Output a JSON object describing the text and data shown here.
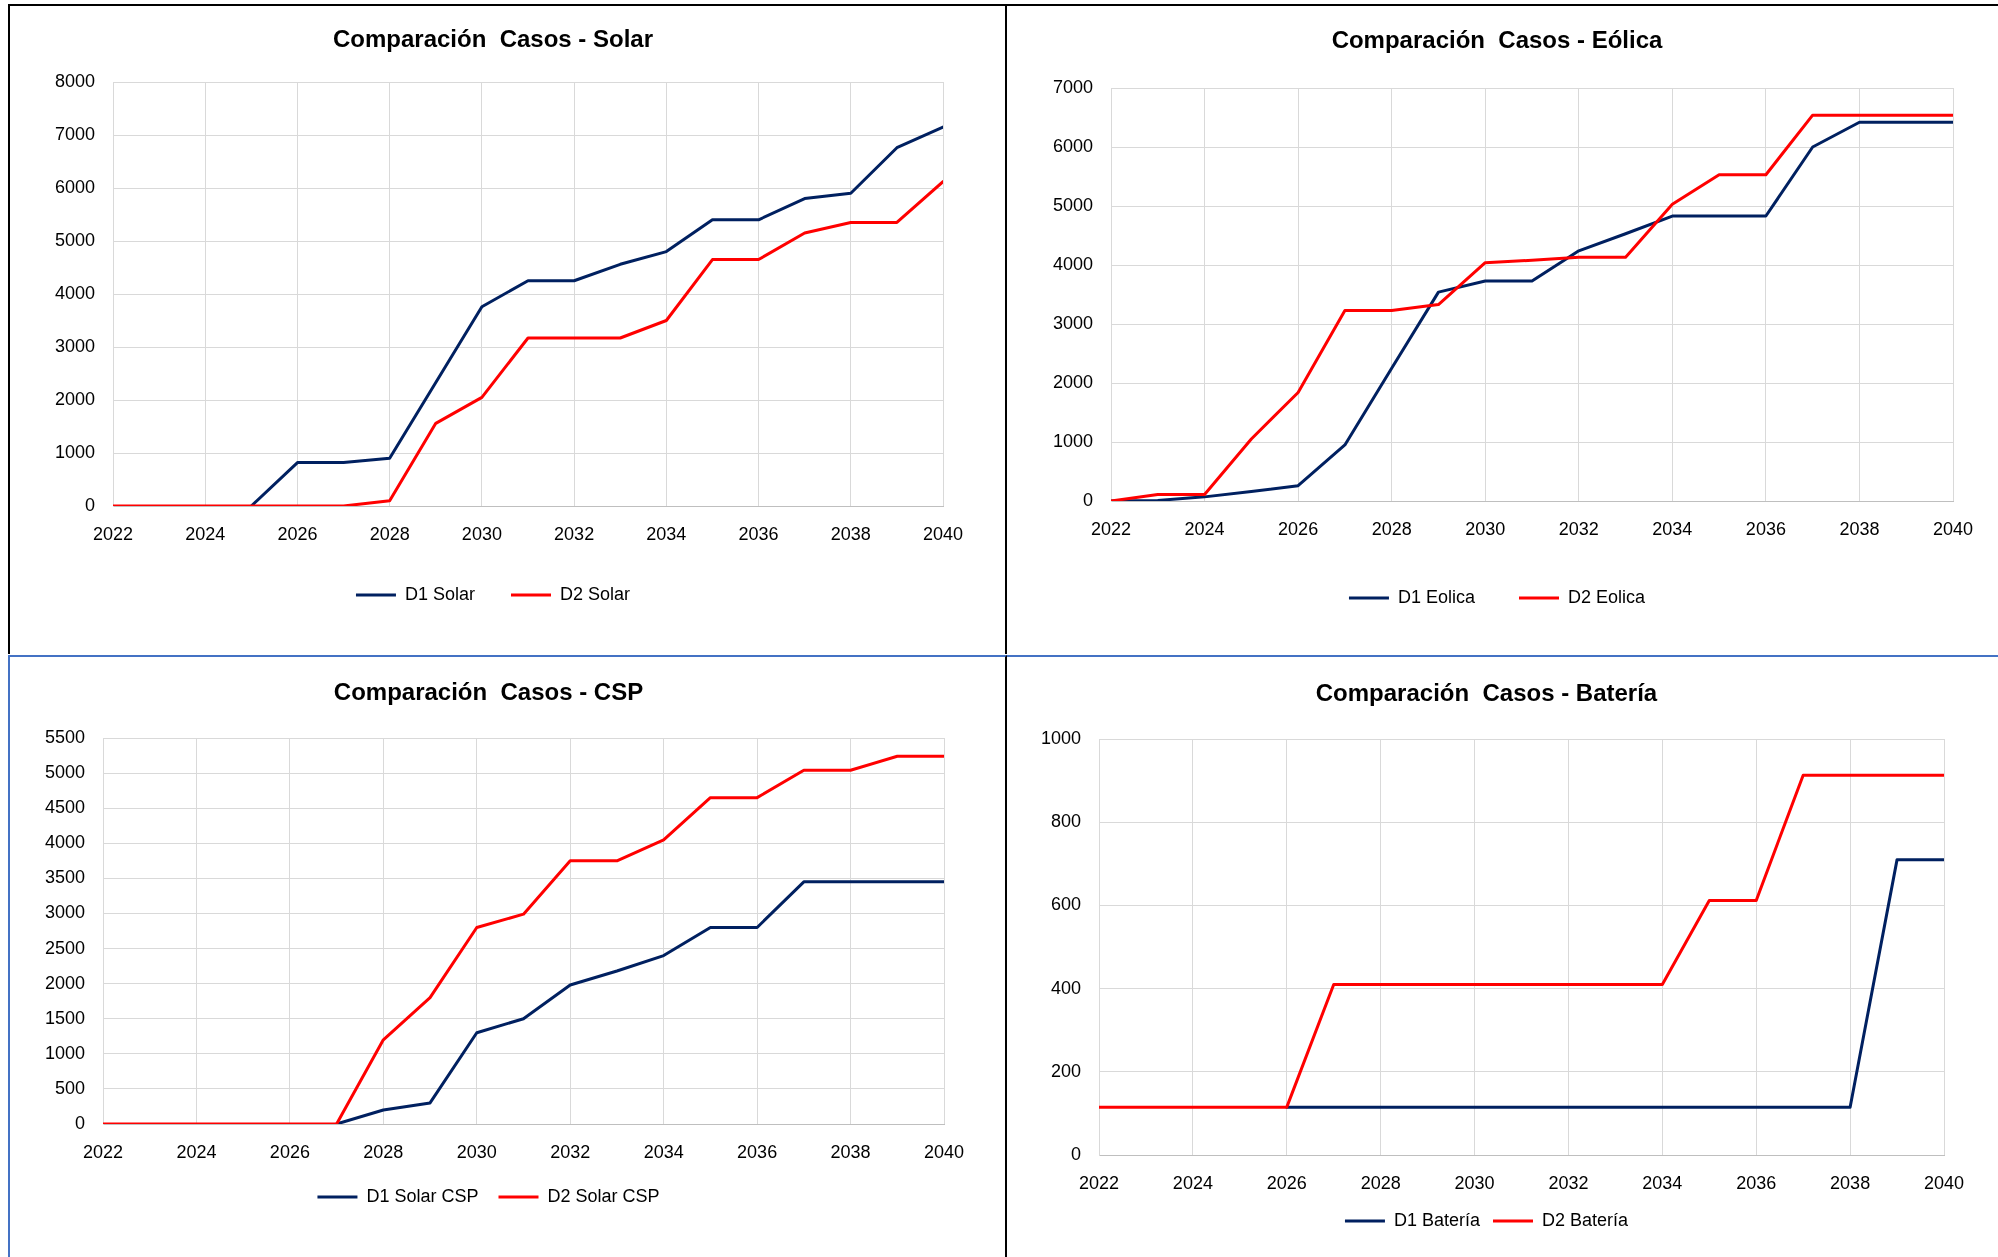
{
  "chart_data": [
    {
      "type": "line",
      "title": "Comparación  Casos - Solar",
      "x": [
        2022,
        2023,
        2024,
        2025,
        2026,
        2027,
        2028,
        2029,
        2030,
        2031,
        2032,
        2033,
        2034,
        2035,
        2036,
        2037,
        2038,
        2039,
        2040
      ],
      "series": [
        {
          "name": "D1 Solar",
          "color": "#002060",
          "values": [
            null,
            null,
            null,
            0,
            820,
            820,
            900,
            2330,
            3760,
            4250,
            4250,
            4560,
            4800,
            5400,
            5400,
            5800,
            5900,
            6760,
            7150
          ]
        },
        {
          "name": "D2 Solar",
          "color": "#ff0000",
          "values": [
            0,
            0,
            0,
            0,
            0,
            0,
            100,
            1560,
            2050,
            3170,
            3170,
            3170,
            3500,
            4650,
            4650,
            5150,
            5350,
            5350,
            6120
          ]
        }
      ],
      "xlim": [
        2022,
        2040
      ],
      "xticks": [
        2022,
        2024,
        2026,
        2028,
        2030,
        2032,
        2034,
        2036,
        2038,
        2040
      ],
      "ylim": [
        0,
        8000
      ],
      "yticks": [
        0,
        1000,
        2000,
        3000,
        4000,
        5000,
        6000,
        7000,
        8000
      ],
      "grid": true,
      "legend": "bottom",
      "marker": "none"
    },
    {
      "type": "line",
      "title": "Comparación  Casos - Eólica",
      "x": [
        2022,
        2023,
        2024,
        2025,
        2026,
        2027,
        2028,
        2029,
        2030,
        2031,
        2032,
        2033,
        2034,
        2035,
        2036,
        2037,
        2038,
        2039,
        2040
      ],
      "series": [
        {
          "name": "D1 Eolica",
          "color": "#002060",
          "values": [
            0,
            10,
            70,
            160,
            260,
            950,
            2250,
            3540,
            3730,
            3730,
            4240,
            4530,
            4830,
            4830,
            4830,
            6000,
            6420,
            6420,
            6420
          ]
        },
        {
          "name": "D2 Eolica",
          "color": "#ff0000",
          "values": [
            0,
            110,
            110,
            1050,
            1840,
            3230,
            3230,
            3330,
            4040,
            4080,
            4130,
            4130,
            5030,
            5530,
            5530,
            6540,
            6540,
            6540,
            6540
          ]
        }
      ],
      "xlim": [
        2022,
        2040
      ],
      "xticks": [
        2022,
        2024,
        2026,
        2028,
        2030,
        2032,
        2034,
        2036,
        2038,
        2040
      ],
      "ylim": [
        0,
        7000
      ],
      "yticks": [
        0,
        1000,
        2000,
        3000,
        4000,
        5000,
        6000,
        7000
      ],
      "grid": true,
      "legend": "bottom",
      "marker": "none"
    },
    {
      "type": "line",
      "title": "Comparación  Casos - CSP",
      "x": [
        2022,
        2023,
        2024,
        2025,
        2026,
        2027,
        2028,
        2029,
        2030,
        2031,
        2032,
        2033,
        2034,
        2035,
        2036,
        2037,
        2038,
        2039,
        2040
      ],
      "series": [
        {
          "name": "D1 Solar CSP",
          "color": "#002060",
          "values": [
            null,
            null,
            null,
            null,
            null,
            0,
            200,
            300,
            1300,
            1500,
            1980,
            2180,
            2400,
            2800,
            2800,
            3450,
            3450,
            3450,
            3450
          ]
        },
        {
          "name": "D2 Solar CSP",
          "color": "#ff0000",
          "values": [
            0,
            0,
            0,
            0,
            0,
            0,
            1200,
            1800,
            2800,
            2990,
            3750,
            3750,
            4050,
            4650,
            4650,
            5040,
            5040,
            5240,
            5240
          ]
        }
      ],
      "xlim": [
        2022,
        2040
      ],
      "xticks": [
        2022,
        2024,
        2026,
        2028,
        2030,
        2032,
        2034,
        2036,
        2038,
        2040
      ],
      "ylim": [
        0,
        5500
      ],
      "yticks": [
        0,
        500,
        1000,
        1500,
        2000,
        2500,
        3000,
        3500,
        4000,
        4500,
        5000,
        5500
      ],
      "grid": true,
      "legend": "bottom",
      "marker": "none"
    },
    {
      "type": "line",
      "title": "Comparación  Casos - Batería",
      "x": [
        2022,
        2023,
        2024,
        2025,
        2026,
        2027,
        2028,
        2029,
        2030,
        2031,
        2032,
        2033,
        2034,
        2035,
        2036,
        2037,
        2038,
        2039,
        2040
      ],
      "series": [
        {
          "name": "D1 Batería",
          "color": "#002060",
          "values": [
            null,
            null,
            null,
            null,
            115,
            115,
            115,
            115,
            115,
            115,
            115,
            115,
            115,
            115,
            115,
            115,
            115,
            710,
            710
          ]
        },
        {
          "name": "D2 Batería",
          "color": "#ff0000",
          "values": [
            115,
            115,
            115,
            115,
            115,
            410,
            410,
            410,
            410,
            410,
            410,
            410,
            410,
            612,
            612,
            913,
            913,
            913,
            913
          ]
        }
      ],
      "xlim": [
        2022,
        2040
      ],
      "xticks": [
        2022,
        2024,
        2026,
        2028,
        2030,
        2032,
        2034,
        2036,
        2038,
        2040
      ],
      "ylim": [
        0,
        1000
      ],
      "yticks": [
        0,
        200,
        400,
        600,
        800,
        1000
      ],
      "grid": true,
      "legend": "bottom",
      "marker": "none"
    }
  ]
}
